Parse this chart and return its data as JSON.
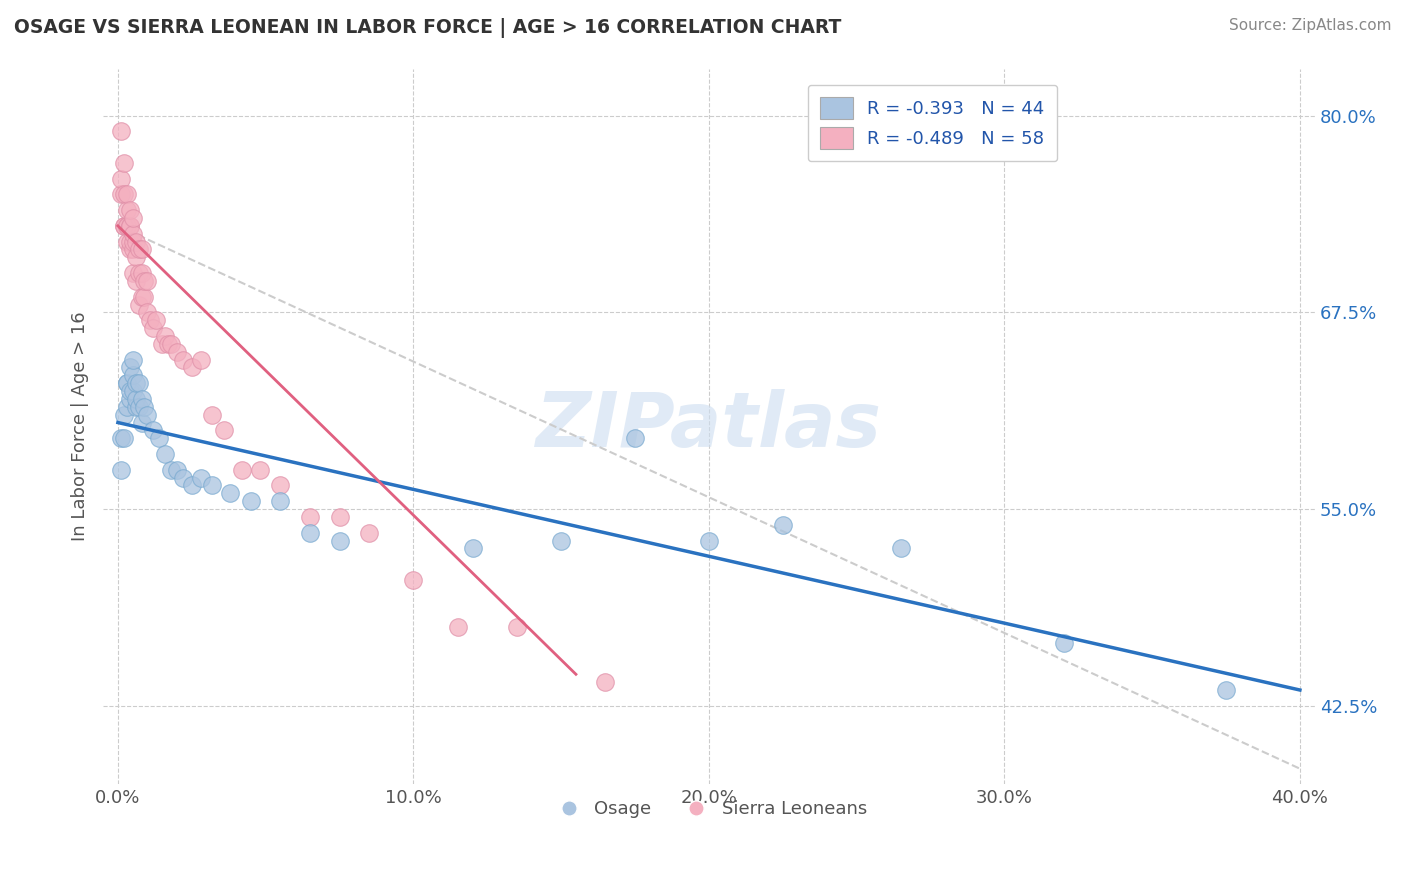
{
  "title": "OSAGE VS SIERRA LEONEAN IN LABOR FORCE | AGE > 16 CORRELATION CHART",
  "source": "Source: ZipAtlas.com",
  "ylabel": "In Labor Force | Age > 16",
  "xlim": [
    -0.005,
    0.405
  ],
  "ylim": [
    0.375,
    0.83
  ],
  "xticks": [
    0.0,
    0.1,
    0.2,
    0.3,
    0.4
  ],
  "xtick_labels": [
    "0.0%",
    "10.0%",
    "20.0%",
    "30.0%",
    "40.0%"
  ],
  "yticks": [
    0.425,
    0.55,
    0.675,
    0.8
  ],
  "ytick_labels": [
    "42.5%",
    "55.0%",
    "67.5%",
    "80.0%"
  ],
  "legend_blue_label": "R = -0.393   N = 44",
  "legend_pink_label": "R = -0.489   N = 58",
  "osage_label": "Osage",
  "sierra_label": "Sierra Leoneans",
  "blue_color": "#aac4e0",
  "blue_edge_color": "#7aaad0",
  "blue_line_color": "#2a72c0",
  "pink_color": "#f4b0c0",
  "pink_edge_color": "#e090a8",
  "pink_line_color": "#e06080",
  "background_color": "#ffffff",
  "grid_color": "#cccccc",
  "title_color": "#333333",
  "watermark": "ZIPatlas",
  "osage_x": [
    0.001,
    0.001,
    0.002,
    0.002,
    0.003,
    0.003,
    0.003,
    0.004,
    0.004,
    0.004,
    0.005,
    0.005,
    0.005,
    0.006,
    0.006,
    0.006,
    0.007,
    0.007,
    0.008,
    0.008,
    0.009,
    0.01,
    0.012,
    0.014,
    0.016,
    0.018,
    0.02,
    0.022,
    0.025,
    0.028,
    0.032,
    0.038,
    0.045,
    0.055,
    0.065,
    0.075,
    0.12,
    0.15,
    0.175,
    0.2,
    0.225,
    0.265,
    0.32,
    0.375
  ],
  "osage_y": [
    0.575,
    0.595,
    0.595,
    0.61,
    0.615,
    0.63,
    0.63,
    0.62,
    0.625,
    0.64,
    0.625,
    0.635,
    0.645,
    0.615,
    0.62,
    0.63,
    0.615,
    0.63,
    0.605,
    0.62,
    0.615,
    0.61,
    0.6,
    0.595,
    0.585,
    0.575,
    0.575,
    0.57,
    0.565,
    0.57,
    0.565,
    0.56,
    0.555,
    0.555,
    0.535,
    0.53,
    0.525,
    0.53,
    0.595,
    0.53,
    0.54,
    0.525,
    0.465,
    0.435
  ],
  "sierra_x": [
    0.001,
    0.001,
    0.001,
    0.002,
    0.002,
    0.002,
    0.002,
    0.003,
    0.003,
    0.003,
    0.003,
    0.003,
    0.004,
    0.004,
    0.004,
    0.004,
    0.004,
    0.005,
    0.005,
    0.005,
    0.005,
    0.005,
    0.006,
    0.006,
    0.006,
    0.007,
    0.007,
    0.007,
    0.008,
    0.008,
    0.008,
    0.009,
    0.009,
    0.01,
    0.01,
    0.011,
    0.012,
    0.013,
    0.015,
    0.016,
    0.017,
    0.018,
    0.02,
    0.022,
    0.025,
    0.028,
    0.032,
    0.036,
    0.042,
    0.048,
    0.055,
    0.065,
    0.075,
    0.085,
    0.1,
    0.115,
    0.135,
    0.165
  ],
  "sierra_y": [
    0.79,
    0.75,
    0.76,
    0.73,
    0.73,
    0.75,
    0.77,
    0.72,
    0.73,
    0.73,
    0.74,
    0.75,
    0.715,
    0.72,
    0.73,
    0.73,
    0.74,
    0.7,
    0.715,
    0.72,
    0.725,
    0.735,
    0.695,
    0.71,
    0.72,
    0.68,
    0.7,
    0.715,
    0.685,
    0.7,
    0.715,
    0.685,
    0.695,
    0.675,
    0.695,
    0.67,
    0.665,
    0.67,
    0.655,
    0.66,
    0.655,
    0.655,
    0.65,
    0.645,
    0.64,
    0.645,
    0.61,
    0.6,
    0.575,
    0.575,
    0.565,
    0.545,
    0.545,
    0.535,
    0.505,
    0.475,
    0.475,
    0.44
  ],
  "blue_trend_x": [
    0.0,
    0.4
  ],
  "blue_trend_y": [
    0.605,
    0.435
  ],
  "pink_trend_x": [
    0.0,
    0.155
  ],
  "pink_trend_y": [
    0.73,
    0.445
  ],
  "dashed_trend_x": [
    0.0,
    0.4
  ],
  "dashed_trend_y": [
    0.73,
    0.385
  ]
}
